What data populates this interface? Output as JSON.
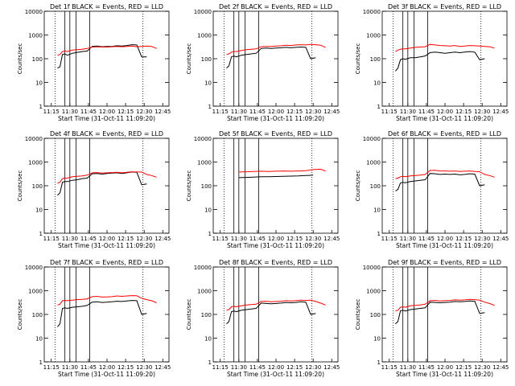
{
  "figure": {
    "start_time_label": "Start Time (31-Oct-11 11:09:20)"
  },
  "common_axes": {
    "ylabel": "Counts/sec",
    "x_tick_labels": [
      "11:15",
      "11:30",
      "11:45",
      "12:00",
      "12:15",
      "12:30",
      "12:45"
    ],
    "y_tick_labels": [
      "1",
      "10",
      "100",
      "1000",
      "10000"
    ],
    "y_scale": "log",
    "ylim": [
      1,
      10000
    ],
    "xlim": [
      "11:09:20",
      "12:50:00"
    ]
  },
  "colors": {
    "events": "#000000",
    "lld": "#ff0000",
    "axes": "#000000",
    "background": "#ffffff"
  },
  "chart_data": [
    {
      "type": "line",
      "title": "Det 1f BLACK = Events, RED = LLD",
      "xlabel": "Start Time (31-Oct-11 11:09:20)",
      "ylabel": "Counts/sec",
      "y_scale": "log",
      "ylim": [
        1,
        10000
      ],
      "x": [
        "11:20",
        "11:22",
        "11:24",
        "11:26",
        "11:28",
        "11:32",
        "11:36",
        "11:40",
        "11:44",
        "11:48",
        "11:52",
        "11:56",
        "12:00",
        "12:04",
        "12:08",
        "12:12",
        "12:16",
        "12:20",
        "12:24",
        "12:28",
        "12:32",
        "12:36",
        "12:40"
      ],
      "series": [
        {
          "name": "Events",
          "color": "#000000",
          "values": [
            40,
            45,
            150,
            160,
            140,
            170,
            185,
            200,
            210,
            330,
            340,
            320,
            330,
            330,
            350,
            340,
            360,
            390,
            380,
            120,
            120,
            null,
            null
          ]
        },
        {
          "name": "LLD",
          "color": "#ff0000",
          "values": [
            140,
            150,
            200,
            210,
            200,
            230,
            240,
            250,
            270,
            310,
            320,
            310,
            310,
            320,
            330,
            320,
            330,
            340,
            320,
            330,
            340,
            330,
            270
          ]
        }
      ]
    },
    {
      "type": "line",
      "title": "Det 2f BLACK = Events, RED = LLD",
      "xlabel": "Start Time (31-Oct-11 11:09:20)",
      "ylabel": "Counts/sec",
      "y_scale": "log",
      "ylim": [
        1,
        10000
      ],
      "x": [
        "11:20",
        "11:22",
        "11:24",
        "11:26",
        "11:28",
        "11:32",
        "11:36",
        "11:40",
        "11:44",
        "11:48",
        "11:52",
        "11:56",
        "12:00",
        "12:04",
        "12:08",
        "12:12",
        "12:16",
        "12:20",
        "12:24",
        "12:28",
        "12:32",
        "12:36",
        "12:40"
      ],
      "series": [
        {
          "name": "Events",
          "color": "#000000",
          "values": [
            40,
            50,
            120,
            130,
            120,
            140,
            150,
            160,
            170,
            270,
            280,
            270,
            280,
            290,
            300,
            290,
            300,
            310,
            300,
            100,
            110,
            null,
            null
          ]
        },
        {
          "name": "LLD",
          "color": "#ff0000",
          "values": [
            150,
            160,
            190,
            200,
            200,
            220,
            240,
            250,
            260,
            320,
            330,
            330,
            340,
            350,
            370,
            360,
            380,
            390,
            380,
            400,
            390,
            370,
            300
          ]
        }
      ]
    },
    {
      "type": "line",
      "title": "Det 3f BLACK = Events, RED = LLD",
      "xlabel": "Start Time (31-Oct-11 11:09:20)",
      "ylabel": "Counts/sec",
      "y_scale": "log",
      "ylim": [
        1,
        10000
      ],
      "x": [
        "11:20",
        "11:22",
        "11:24",
        "11:26",
        "11:28",
        "11:32",
        "11:36",
        "11:40",
        "11:44",
        "11:48",
        "11:52",
        "11:56",
        "12:00",
        "12:04",
        "12:08",
        "12:12",
        "12:16",
        "12:20",
        "12:24",
        "12:28",
        "12:32",
        "12:36",
        "12:40"
      ],
      "series": [
        {
          "name": "Events",
          "color": "#000000",
          "values": [
            30,
            40,
            90,
            100,
            95,
            110,
            110,
            120,
            130,
            180,
            190,
            180,
            170,
            180,
            190,
            180,
            190,
            200,
            190,
            90,
            100,
            null,
            null
          ]
        },
        {
          "name": "LLD",
          "color": "#ff0000",
          "values": [
            200,
            230,
            250,
            260,
            260,
            280,
            300,
            310,
            320,
            400,
            380,
            360,
            350,
            340,
            360,
            330,
            340,
            360,
            350,
            340,
            330,
            320,
            280
          ]
        }
      ]
    },
    {
      "type": "line",
      "title": "Det 4f BLACK = Events, RED = LLD",
      "xlabel": "Start Time (31-Oct-11 11:09:20)",
      "ylabel": "Counts/sec",
      "y_scale": "log",
      "ylim": [
        1,
        10000
      ],
      "x": [
        "11:20",
        "11:22",
        "11:24",
        "11:26",
        "11:28",
        "11:32",
        "11:36",
        "11:40",
        "11:44",
        "11:48",
        "11:52",
        "11:56",
        "12:00",
        "12:04",
        "12:08",
        "12:12",
        "12:16",
        "12:20",
        "12:24",
        "12:28",
        "12:32",
        "12:36",
        "12:40"
      ],
      "series": [
        {
          "name": "Events",
          "color": "#000000",
          "values": [
            40,
            50,
            140,
            150,
            150,
            170,
            180,
            200,
            210,
            320,
            330,
            310,
            330,
            340,
            350,
            330,
            350,
            380,
            370,
            110,
            120,
            null,
            null
          ]
        },
        {
          "name": "LLD",
          "color": "#ff0000",
          "values": [
            130,
            140,
            200,
            210,
            210,
            240,
            250,
            260,
            280,
            350,
            360,
            340,
            350,
            360,
            370,
            350,
            370,
            390,
            380,
            380,
            300,
            270,
            230
          ]
        }
      ]
    },
    {
      "type": "line",
      "title": "Det 5f BLACK = Events, RED = LLD",
      "xlabel": "Start Time (31-Oct-11 11:09:20)",
      "ylabel": "Counts/sec",
      "y_scale": "log",
      "ylim": [
        1,
        10000
      ],
      "x": [
        "11:30",
        "11:36",
        "11:42",
        "11:48",
        "11:54",
        "12:00",
        "12:06",
        "12:12",
        "12:18",
        "12:24",
        "12:30",
        "12:36",
        "12:40"
      ],
      "series": [
        {
          "name": "Events",
          "color": "#000000",
          "values": [
            220,
            225,
            230,
            240,
            240,
            245,
            250,
            255,
            260,
            270,
            280,
            null,
            null
          ]
        },
        {
          "name": "LLD",
          "color": "#ff0000",
          "values": [
            380,
            390,
            400,
            410,
            400,
            410,
            420,
            410,
            420,
            430,
            480,
            500,
            420
          ]
        }
      ]
    },
    {
      "type": "line",
      "title": "Det 6f BLACK = Events, RED = LLD",
      "xlabel": "Start Time (31-Oct-11 11:09:20)",
      "ylabel": "Counts/sec",
      "y_scale": "log",
      "ylim": [
        1,
        10000
      ],
      "x": [
        "11:20",
        "11:22",
        "11:24",
        "11:26",
        "11:28",
        "11:32",
        "11:36",
        "11:40",
        "11:44",
        "11:48",
        "11:52",
        "11:56",
        "12:00",
        "12:04",
        "12:08",
        "12:12",
        "12:16",
        "12:20",
        "12:24",
        "12:28",
        "12:32",
        "12:36",
        "12:40"
      ],
      "series": [
        {
          "name": "Events",
          "color": "#000000",
          "values": [
            60,
            70,
            130,
            140,
            135,
            150,
            160,
            170,
            180,
            330,
            320,
            300,
            310,
            300,
            310,
            290,
            300,
            320,
            310,
            100,
            110,
            null,
            null
          ]
        },
        {
          "name": "LLD",
          "color": "#ff0000",
          "values": [
            200,
            210,
            240,
            250,
            240,
            260,
            270,
            280,
            300,
            440,
            450,
            420,
            420,
            410,
            420,
            400,
            410,
            420,
            400,
            390,
            300,
            270,
            230
          ]
        }
      ]
    },
    {
      "type": "line",
      "title": "Det 7f BLACK = Events, RED = LLD",
      "xlabel": "Start Time (31-Oct-11 11:09:20)",
      "ylabel": "Counts/sec",
      "y_scale": "log",
      "ylim": [
        1,
        10000
      ],
      "x": [
        "11:20",
        "11:22",
        "11:24",
        "11:26",
        "11:28",
        "11:32",
        "11:36",
        "11:40",
        "11:44",
        "11:48",
        "11:52",
        "11:56",
        "12:00",
        "12:04",
        "12:08",
        "12:12",
        "12:16",
        "12:20",
        "12:24",
        "12:28",
        "12:32",
        "12:36",
        "12:40"
      ],
      "series": [
        {
          "name": "Events",
          "color": "#000000",
          "values": [
            30,
            40,
            180,
            190,
            180,
            200,
            210,
            220,
            240,
            330,
            340,
            320,
            330,
            340,
            360,
            350,
            370,
            390,
            380,
            100,
            110,
            null,
            null
          ]
        },
        {
          "name": "LLD",
          "color": "#ff0000",
          "values": [
            250,
            270,
            380,
            390,
            380,
            400,
            420,
            430,
            450,
            560,
            580,
            540,
            550,
            560,
            600,
            580,
            600,
            620,
            610,
            480,
            420,
            380,
            310
          ]
        }
      ]
    },
    {
      "type": "line",
      "title": "Det 8f BLACK = Events, RED = LLD",
      "xlabel": "Start Time (31-Oct-11 11:09:20)",
      "ylabel": "Counts/sec",
      "y_scale": "log",
      "ylim": [
        1,
        10000
      ],
      "x": [
        "11:20",
        "11:22",
        "11:24",
        "11:26",
        "11:28",
        "11:32",
        "11:36",
        "11:40",
        "11:44",
        "11:48",
        "11:52",
        "11:56",
        "12:00",
        "12:04",
        "12:08",
        "12:12",
        "12:16",
        "12:20",
        "12:24",
        "12:28",
        "12:32",
        "12:36",
        "12:40"
      ],
      "series": [
        {
          "name": "Events",
          "color": "#000000",
          "values": [
            40,
            50,
            130,
            140,
            130,
            150,
            160,
            170,
            180,
            300,
            290,
            280,
            290,
            300,
            320,
            310,
            320,
            340,
            330,
            100,
            110,
            null,
            null
          ]
        },
        {
          "name": "LLD",
          "color": "#ff0000",
          "values": [
            150,
            160,
            210,
            220,
            210,
            230,
            250,
            260,
            270,
            350,
            360,
            340,
            350,
            360,
            380,
            370,
            380,
            400,
            390,
            400,
            350,
            300,
            250
          ]
        }
      ]
    },
    {
      "type": "line",
      "title": "Det 9f BLACK = Events, RED = LLD",
      "xlabel": "Start Time (31-Oct-11 11:09:20)",
      "ylabel": "Counts/sec",
      "y_scale": "log",
      "ylim": [
        1,
        10000
      ],
      "x": [
        "11:20",
        "11:22",
        "11:24",
        "11:26",
        "11:28",
        "11:32",
        "11:36",
        "11:40",
        "11:44",
        "11:48",
        "11:52",
        "11:56",
        "12:00",
        "12:04",
        "12:08",
        "12:12",
        "12:16",
        "12:20",
        "12:24",
        "12:28",
        "12:32",
        "12:36",
        "12:40"
      ],
      "series": [
        {
          "name": "Events",
          "color": "#000000",
          "values": [
            40,
            50,
            140,
            150,
            140,
            160,
            170,
            180,
            190,
            330,
            320,
            310,
            320,
            330,
            350,
            340,
            350,
            370,
            360,
            110,
            120,
            null,
            null
          ]
        },
        {
          "name": "LLD",
          "color": "#ff0000",
          "values": [
            140,
            150,
            200,
            210,
            200,
            230,
            240,
            250,
            270,
            380,
            390,
            370,
            380,
            390,
            410,
            400,
            410,
            430,
            420,
            400,
            330,
            290,
            240
          ]
        }
      ]
    }
  ]
}
